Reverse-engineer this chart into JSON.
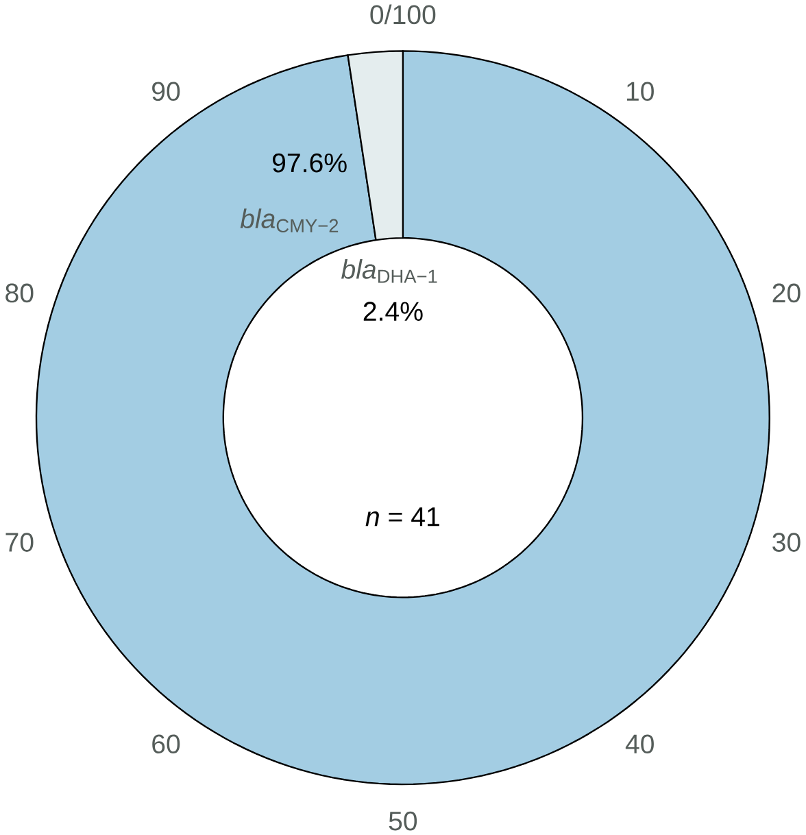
{
  "chart_data": {
    "type": "donut",
    "categories": [
      "*bla*$_{CMY−2}$",
      "*bla*$_{DHA−1}$"
    ],
    "values": [
      97.6,
      2.4
    ],
    "colors": [
      "#a3cde3",
      "#e4edee"
    ],
    "value_labels": [
      "97.6%",
      "2.4%"
    ],
    "annotations": [
      "0/100",
      "10",
      "20",
      "30",
      "40",
      "50",
      "60",
      "70",
      "80",
      "90",
      "*n* = 41"
    ]
  }
}
